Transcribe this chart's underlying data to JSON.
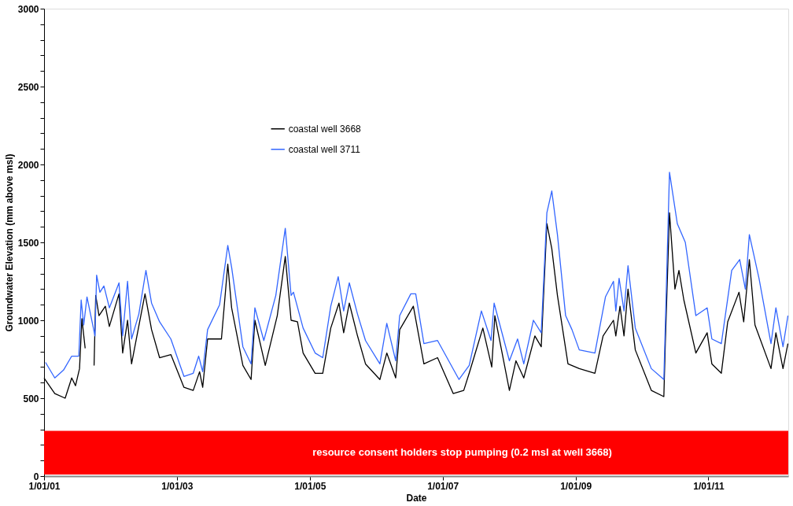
{
  "chart_data": {
    "type": "line",
    "xlabel": "Date",
    "ylabel": "Groundwater Elevation (mm above msl)",
    "xlim": [
      "2001-01-01",
      "2012-03-15"
    ],
    "xticks": [
      {
        "value": "2001-01-01",
        "label": "1/01/01"
      },
      {
        "value": "2003-01-01",
        "label": "1/01/03"
      },
      {
        "value": "2005-01-01",
        "label": "1/01/05"
      },
      {
        "value": "2007-01-01",
        "label": "1/01/07"
      },
      {
        "value": "2009-01-01",
        "label": "1/01/09"
      },
      {
        "value": "2011-01-01",
        "label": "1/01/11"
      }
    ],
    "ylim": [
      0,
      3000
    ],
    "yticks": [
      0,
      {
        "value": 100,
        "label": null
      },
      {
        "value": 200,
        "label": null
      },
      {
        "value": 300,
        "label": null
      },
      {
        "value": 400,
        "label": null
      },
      500,
      {
        "value": 600,
        "label": null
      },
      {
        "value": 700,
        "label": null
      },
      {
        "value": 800,
        "label": null
      },
      {
        "value": 900,
        "label": null
      },
      1000,
      {
        "value": 1100,
        "label": null
      },
      {
        "value": 1200,
        "label": null
      },
      {
        "value": 1300,
        "label": null
      },
      {
        "value": 1400,
        "label": null
      },
      1500,
      {
        "value": 1600,
        "label": null
      },
      {
        "value": 1700,
        "label": null
      },
      {
        "value": 1800,
        "label": null
      },
      {
        "value": 1900,
        "label": null
      },
      2000,
      {
        "value": 2100,
        "label": null
      },
      {
        "value": 2200,
        "label": null
      },
      {
        "value": 2300,
        "label": null
      },
      {
        "value": 2400,
        "label": null
      },
      2500,
      {
        "value": 2600,
        "label": null
      },
      {
        "value": 2700,
        "label": null
      },
      {
        "value": 2800,
        "label": null
      },
      {
        "value": 2900,
        "label": null
      },
      3000
    ],
    "grid": false,
    "legend": "top",
    "marker": "none",
    "line_style": "solid",
    "bands": [
      {
        "axis": "y",
        "from": 10,
        "to": 290,
        "label": "resource consent holders stop pumping  (0.2 msl at well 3668)",
        "color": "#ff0000"
      }
    ],
    "series": [
      {
        "name": "coastal well 3668",
        "color": "#000000",
        "x": [
          "2001-01-01",
          "2001-03-01",
          "2001-04-27",
          "2001-06-02",
          "2001-06-23",
          "2001-07-15",
          "2001-07-28",
          "2001-08-15",
          "2001-09-01",
          "2001-10-03",
          "2001-10-12",
          "2001-10-30",
          "2001-12-04",
          "2001-12-26",
          "2002-02-17",
          "2002-03-09",
          "2002-04-05",
          "2002-04-27",
          "2002-07-10",
          "2002-08-15",
          "2002-09-28",
          "2002-11-29",
          "2003-02-09",
          "2003-04-01",
          "2003-05-06",
          "2003-05-23",
          "2003-06-19",
          "2003-09-03",
          "2003-10-08",
          "2003-10-29",
          "2003-12-30",
          "2004-02-13",
          "2004-03-05",
          "2004-05-01",
          "2004-07-06",
          "2004-08-19",
          "2004-09-20",
          "2004-10-25",
          "2004-11-25",
          "2005-01-30",
          "2005-03-13",
          "2005-04-26",
          "2005-06-10",
          "2005-07-06",
          "2005-08-06",
          "2005-09-20",
          "2005-11-03",
          "2006-01-21",
          "2006-02-28",
          "2006-04-18",
          "2006-05-10",
          "2006-07-24",
          "2006-09-20",
          "2006-12-04",
          "2007-02-28",
          "2007-04-27",
          "2007-05-27",
          "2007-06-27",
          "2007-08-10",
          "2007-09-28",
          "2007-10-15",
          "2008-01-03",
          "2008-02-08",
          "2008-03-22",
          "2008-05-22",
          "2008-06-26",
          "2008-07-27",
          "2008-08-23",
          "2008-09-23",
          "2008-11-20",
          "2009-01-21",
          "2009-04-17",
          "2009-06-01",
          "2009-07-28",
          "2009-08-10",
          "2009-09-02",
          "2009-09-24",
          "2009-10-16",
          "2009-11-25",
          "2010-02-21",
          "2010-05-01",
          "2010-05-09",
          "2010-06-01",
          "2010-07-01",
          "2010-07-23",
          "2010-08-19",
          "2010-10-24",
          "2010-12-25",
          "2011-01-20",
          "2011-03-13",
          "2011-04-17",
          "2011-06-18",
          "2011-07-14",
          "2011-08-14",
          "2011-09-14",
          "2011-12-11",
          "2012-01-07",
          "2012-02-15",
          "2012-03-13"
        ],
        "values": [
          630,
          530,
          500,
          630,
          580,
          690,
          1010,
          820,
          null,
          710,
          1160,
          1030,
          1090,
          960,
          1170,
          790,
          1000,
          720,
          1170,
          940,
          760,
          780,
          570,
          550,
          670,
          570,
          880,
          880,
          1360,
          1080,
          710,
          620,
          1000,
          710,
          1030,
          1410,
          1000,
          990,
          790,
          660,
          660,
          950,
          1110,
          920,
          1110,
          900,
          720,
          620,
          790,
          630,
          940,
          1090,
          720,
          760,
          530,
          550,
          660,
          780,
          950,
          700,
          1030,
          550,
          740,
          630,
          900,
          830,
          1620,
          1460,
          1160,
          720,
          690,
          660,
          900,
          1000,
          900,
          1090,
          900,
          1200,
          810,
          550,
          510,
          850,
          1690,
          1200,
          1320,
          1130,
          790,
          920,
          720,
          660,
          990,
          1180,
          990,
          1390,
          970,
          690,
          920,
          690,
          850
        ]
      },
      {
        "name": "coastal well 3711",
        "color": "#3366ff",
        "x": [
          "2001-01-09",
          "2001-03-01",
          "2001-04-18",
          "2001-06-02",
          "2001-07-11",
          "2001-07-24",
          "2001-08-07",
          "2001-08-25",
          "2001-10-08",
          "2001-10-17",
          "2001-11-04",
          "2001-11-26",
          "2001-12-26",
          "2002-02-17",
          "2002-03-09",
          "2002-04-05",
          "2002-04-27",
          "2002-06-06",
          "2002-07-15",
          "2002-08-15",
          "2002-09-28",
          "2002-11-29",
          "2003-02-09",
          "2003-04-01",
          "2003-05-01",
          "2003-05-23",
          "2003-06-19",
          "2003-08-24",
          "2003-10-08",
          "2003-10-29",
          "2003-12-30",
          "2004-02-13",
          "2004-03-05",
          "2004-04-23",
          "2004-06-28",
          "2004-08-19",
          "2004-09-20",
          "2004-10-03",
          "2004-11-25",
          "2005-01-30",
          "2005-03-13",
          "2005-04-26",
          "2005-06-06",
          "2005-07-06",
          "2005-08-06",
          "2005-09-20",
          "2005-11-03",
          "2006-01-21",
          "2006-02-28",
          "2006-04-18",
          "2006-05-10",
          "2006-07-10",
          "2006-08-06",
          "2006-09-20",
          "2006-12-04",
          "2007-04-01",
          "2007-05-27",
          "2007-08-02",
          "2007-09-24",
          "2007-10-11",
          "2008-01-03",
          "2008-02-17",
          "2008-03-22",
          "2008-05-14",
          "2008-06-26",
          "2008-07-27",
          "2008-08-23",
          "2008-09-23",
          "2008-11-07",
          "2008-12-12",
          "2009-01-21",
          "2009-04-17",
          "2009-06-14",
          "2009-07-28",
          "2009-08-10",
          "2009-08-28",
          "2009-09-24",
          "2009-10-16",
          "2009-11-25",
          "2010-02-21",
          "2010-05-01",
          "2010-06-01",
          "2010-07-14",
          "2010-08-27",
          "2010-10-24",
          "2010-12-25",
          "2011-01-20",
          "2011-03-13",
          "2011-05-09",
          "2011-06-22",
          "2011-07-23",
          "2011-08-14",
          "2011-10-06",
          "2011-12-11",
          "2012-01-07",
          "2012-02-15",
          "2012-03-13"
        ],
        "values": [
          730,
          630,
          680,
          770,
          770,
          1130,
          970,
          1150,
          900,
          1290,
          1180,
          1220,
          1080,
          1240,
          900,
          1250,
          880,
          1040,
          1320,
          1110,
          990,
          880,
          640,
          660,
          770,
          670,
          940,
          1100,
          1480,
          1340,
          830,
          720,
          1080,
          870,
          1160,
          1590,
          1160,
          1180,
          950,
          790,
          760,
          1090,
          1280,
          1060,
          1240,
          1040,
          870,
          720,
          980,
          740,
          1030,
          1170,
          1170,
          850,
          870,
          620,
          710,
          1060,
          870,
          1110,
          740,
          880,
          720,
          1000,
          920,
          1690,
          1830,
          1550,
          1030,
          940,
          810,
          790,
          1150,
          1250,
          1060,
          1270,
          1060,
          1350,
          950,
          690,
          620,
          1950,
          1620,
          1500,
          1030,
          1080,
          880,
          850,
          1320,
          1390,
          1200,
          1550,
          1270,
          850,
          1080,
          830,
          1030
        ]
      }
    ]
  }
}
